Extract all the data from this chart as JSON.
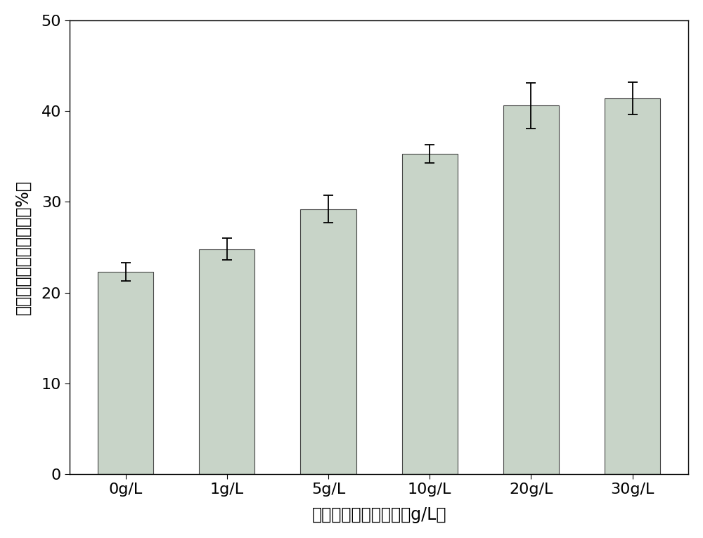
{
  "categories": [
    "0g/L",
    "1g/L",
    "5g/L",
    "10g/L",
    "20g/L",
    "30g/L"
  ],
  "values": [
    22.3,
    24.8,
    29.2,
    35.3,
    40.6,
    41.4
  ],
  "errors": [
    1.0,
    1.2,
    1.5,
    1.0,
    2.5,
    1.8
  ],
  "bar_color": "#c8d4c8",
  "bar_edgecolor": "#444444",
  "ylabel": "挥发性固体减量百分比（%）",
  "xlabel": "生锈废铁屑投加剂量（g/L）",
  "ylim": [
    0,
    50
  ],
  "yticks": [
    0,
    10,
    20,
    30,
    40,
    50
  ],
  "bar_width": 0.55,
  "label_fontsize": 17,
  "tick_fontsize": 16,
  "background_color": "#ffffff"
}
